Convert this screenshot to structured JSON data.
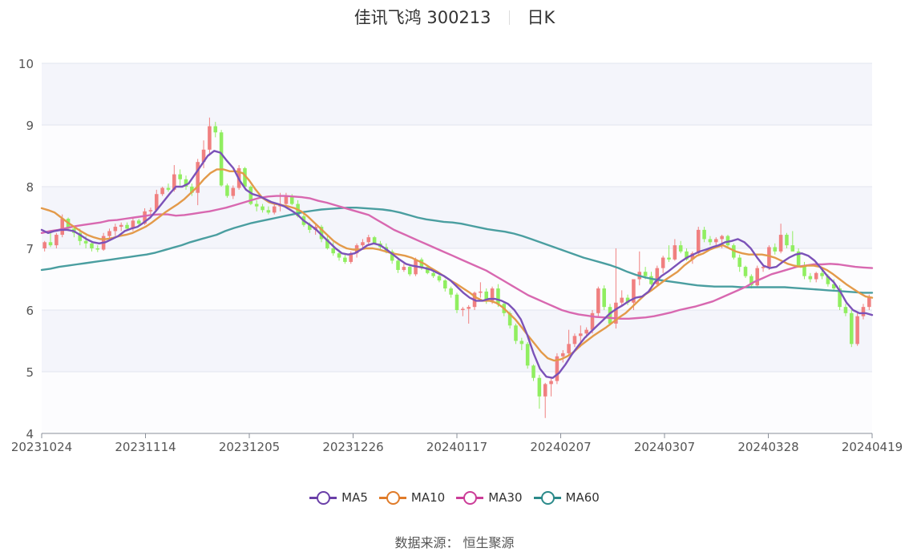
{
  "header": {
    "stock": "佳讯飞鸿 300213",
    "period": "日K"
  },
  "source": "数据来源： 恒生聚源",
  "chart_data": {
    "type": "candlestick",
    "ylim": [
      4,
      10
    ],
    "y_ticks": [
      "4",
      "5",
      "6",
      "7",
      "8",
      "9",
      "10"
    ],
    "x_ticks": [
      "20231024",
      "20231114",
      "20231205",
      "20231226",
      "20240117",
      "20240207",
      "20240307",
      "20240328",
      "20240419"
    ],
    "colors": {
      "up": "#f08080",
      "down": "#90ee60",
      "ma5": "#7b52b8",
      "ma10": "#e39a4a",
      "ma30": "#d868b0",
      "ma60": "#4a9ea0"
    },
    "legend": [
      {
        "name": "MA5",
        "color": "#6a3fa8"
      },
      {
        "name": "MA10",
        "color": "#e07b29"
      },
      {
        "name": "MA30",
        "color": "#cc3d98"
      },
      {
        "name": "MA60",
        "color": "#2b8a8a"
      }
    ],
    "candles_ohlc": [
      [
        7.0,
        7.12,
        6.95,
        7.1
      ],
      [
        7.1,
        7.28,
        7.02,
        7.05
      ],
      [
        7.05,
        7.25,
        7.0,
        7.22
      ],
      [
        7.22,
        7.55,
        7.18,
        7.48
      ],
      [
        7.48,
        7.5,
        7.28,
        7.32
      ],
      [
        7.32,
        7.35,
        7.18,
        7.25
      ],
      [
        7.25,
        7.32,
        7.05,
        7.12
      ],
      [
        7.12,
        7.2,
        7.0,
        7.08
      ],
      [
        7.08,
        7.12,
        6.95,
        7.0
      ],
      [
        7.0,
        7.05,
        6.94,
        6.98
      ],
      [
        6.98,
        7.25,
        6.96,
        7.2
      ],
      [
        7.2,
        7.32,
        7.15,
        7.28
      ],
      [
        7.28,
        7.4,
        7.2,
        7.35
      ],
      [
        7.35,
        7.42,
        7.28,
        7.38
      ],
      [
        7.38,
        7.42,
        7.3,
        7.32
      ],
      [
        7.32,
        7.5,
        7.28,
        7.45
      ],
      [
        7.45,
        7.48,
        7.35,
        7.4
      ],
      [
        7.4,
        7.65,
        7.38,
        7.6
      ],
      [
        7.6,
        7.66,
        7.55,
        7.62
      ],
      [
        7.62,
        7.95,
        7.6,
        7.88
      ],
      [
        7.88,
        8.0,
        7.85,
        7.98
      ],
      [
        7.98,
        8.05,
        7.92,
        7.95
      ],
      [
        7.95,
        8.35,
        7.92,
        8.2
      ],
      [
        8.2,
        8.28,
        8.02,
        8.12
      ],
      [
        8.12,
        8.18,
        7.95,
        8.0
      ],
      [
        8.0,
        8.05,
        7.85,
        7.9
      ],
      [
        7.9,
        8.45,
        7.7,
        8.4
      ],
      [
        8.4,
        8.75,
        8.3,
        8.6
      ],
      [
        8.6,
        9.12,
        8.5,
        8.98
      ],
      [
        8.98,
        9.05,
        8.8,
        8.88
      ],
      [
        8.88,
        8.92,
        8.0,
        8.02
      ],
      [
        8.02,
        8.05,
        7.82,
        7.85
      ],
      [
        7.85,
        8.02,
        7.8,
        7.98
      ],
      [
        7.98,
        8.35,
        7.95,
        8.3
      ],
      [
        8.3,
        8.32,
        7.98,
        8.0
      ],
      [
        8.0,
        8.02,
        7.7,
        7.72
      ],
      [
        7.72,
        7.78,
        7.6,
        7.68
      ],
      [
        7.68,
        7.72,
        7.58,
        7.62
      ],
      [
        7.62,
        7.68,
        7.55,
        7.58
      ],
      [
        7.58,
        7.72,
        7.55,
        7.68
      ],
      [
        7.68,
        7.9,
        7.6,
        7.72
      ],
      [
        7.72,
        7.9,
        7.68,
        7.85
      ],
      [
        7.85,
        7.88,
        7.7,
        7.72
      ],
      [
        7.72,
        7.78,
        7.5,
        7.52
      ],
      [
        7.52,
        7.58,
        7.35,
        7.38
      ],
      [
        7.38,
        7.42,
        7.25,
        7.3
      ],
      [
        7.3,
        7.38,
        7.22,
        7.35
      ],
      [
        7.35,
        7.38,
        7.1,
        7.15
      ],
      [
        7.15,
        7.2,
        6.98,
        7.0
      ],
      [
        7.0,
        7.1,
        6.88,
        6.92
      ],
      [
        6.92,
        6.98,
        6.8,
        6.85
      ],
      [
        6.85,
        6.9,
        6.75,
        6.78
      ],
      [
        6.78,
        6.95,
        6.75,
        6.92
      ],
      [
        6.92,
        7.08,
        6.85,
        7.05
      ],
      [
        7.05,
        7.15,
        7.0,
        7.1
      ],
      [
        7.1,
        7.22,
        7.05,
        7.18
      ],
      [
        7.18,
        7.2,
        7.06,
        7.08
      ],
      [
        7.08,
        7.12,
        6.98,
        7.02
      ],
      [
        7.02,
        7.08,
        6.92,
        6.95
      ],
      [
        6.95,
        6.98,
        6.75,
        6.8
      ],
      [
        6.8,
        6.84,
        6.6,
        6.65
      ],
      [
        6.65,
        6.75,
        6.62,
        6.7
      ],
      [
        6.7,
        6.72,
        6.55,
        6.58
      ],
      [
        6.58,
        6.85,
        6.55,
        6.82
      ],
      [
        6.82,
        6.85,
        6.65,
        6.7
      ],
      [
        6.7,
        6.72,
        6.58,
        6.6
      ],
      [
        6.6,
        6.65,
        6.52,
        6.55
      ],
      [
        6.55,
        6.58,
        6.45,
        6.48
      ],
      [
        6.48,
        6.5,
        6.3,
        6.35
      ],
      [
        6.35,
        6.38,
        6.2,
        6.25
      ],
      [
        6.25,
        6.28,
        5.95,
        6.0
      ],
      [
        6.0,
        6.05,
        5.9,
        6.02
      ],
      [
        6.02,
        6.08,
        5.78,
        6.05
      ],
      [
        6.05,
        6.3,
        6.0,
        6.28
      ],
      [
        6.28,
        6.45,
        6.2,
        6.3
      ],
      [
        6.3,
        6.35,
        6.1,
        6.15
      ],
      [
        6.15,
        6.38,
        6.1,
        6.35
      ],
      [
        6.35,
        6.42,
        6.05,
        6.1
      ],
      [
        6.1,
        6.12,
        5.9,
        5.95
      ],
      [
        5.95,
        5.98,
        5.7,
        5.75
      ],
      [
        5.75,
        5.78,
        5.45,
        5.5
      ],
      [
        5.5,
        5.55,
        5.35,
        5.45
      ],
      [
        5.45,
        5.48,
        5.05,
        5.1
      ],
      [
        5.1,
        5.12,
        4.85,
        4.9
      ],
      [
        4.9,
        4.95,
        4.4,
        4.6
      ],
      [
        4.6,
        4.82,
        4.25,
        4.8
      ],
      [
        4.8,
        4.9,
        4.6,
        4.85
      ],
      [
        4.85,
        5.3,
        4.8,
        5.25
      ],
      [
        5.25,
        5.35,
        5.15,
        5.3
      ],
      [
        5.3,
        5.68,
        5.25,
        5.45
      ],
      [
        5.45,
        5.62,
        5.4,
        5.58
      ],
      [
        5.58,
        5.75,
        5.4,
        5.62
      ],
      [
        5.62,
        5.72,
        5.55,
        5.68
      ],
      [
        5.68,
        6.0,
        5.62,
        5.95
      ],
      [
        5.95,
        6.38,
        5.9,
        6.35
      ],
      [
        6.35,
        6.4,
        6.0,
        6.05
      ],
      [
        6.05,
        6.1,
        5.75,
        5.78
      ],
      [
        5.78,
        7.0,
        5.7,
        6.12
      ],
      [
        6.12,
        6.32,
        6.05,
        6.2
      ],
      [
        6.2,
        6.25,
        6.08,
        6.12
      ],
      [
        6.12,
        6.28,
        6.0,
        6.5
      ],
      [
        6.5,
        6.95,
        6.4,
        6.62
      ],
      [
        6.62,
        6.7,
        6.5,
        6.55
      ],
      [
        6.55,
        6.62,
        6.4,
        6.42
      ],
      [
        6.42,
        6.72,
        6.4,
        6.68
      ],
      [
        6.68,
        6.88,
        6.6,
        6.85
      ],
      [
        6.85,
        7.05,
        6.78,
        6.82
      ],
      [
        6.82,
        7.15,
        6.8,
        7.05
      ],
      [
        7.05,
        7.12,
        6.92,
        6.95
      ],
      [
        6.95,
        7.0,
        6.8,
        6.82
      ],
      [
        6.82,
        6.95,
        6.75,
        6.92
      ],
      [
        6.92,
        7.35,
        6.9,
        7.3
      ],
      [
        7.3,
        7.35,
        7.1,
        7.15
      ],
      [
        7.15,
        7.2,
        7.05,
        7.1
      ],
      [
        7.1,
        7.18,
        7.05,
        7.15
      ],
      [
        7.15,
        7.22,
        7.0,
        7.2
      ],
      [
        7.2,
        7.22,
        7.0,
        7.05
      ],
      [
        7.05,
        7.08,
        6.82,
        6.85
      ],
      [
        6.85,
        6.9,
        6.62,
        6.7
      ],
      [
        6.7,
        6.72,
        6.52,
        6.55
      ],
      [
        6.55,
        6.58,
        6.35,
        6.4
      ],
      [
        6.4,
        6.72,
        6.38,
        6.68
      ],
      [
        6.68,
        6.72,
        6.62,
        6.7
      ],
      [
        6.7,
        7.05,
        6.65,
        7.02
      ],
      [
        7.02,
        7.08,
        6.9,
        6.95
      ],
      [
        6.95,
        7.4,
        6.92,
        7.22
      ],
      [
        7.22,
        7.25,
        7.0,
        7.05
      ],
      [
        7.05,
        7.28,
        6.95,
        6.95
      ],
      [
        6.95,
        7.0,
        6.7,
        6.72
      ],
      [
        6.72,
        6.78,
        6.5,
        6.55
      ],
      [
        6.55,
        6.6,
        6.45,
        6.5
      ],
      [
        6.5,
        6.62,
        6.45,
        6.6
      ],
      [
        6.6,
        6.65,
        6.5,
        6.55
      ],
      [
        6.55,
        6.58,
        6.38,
        6.42
      ],
      [
        6.42,
        6.5,
        6.3,
        6.35
      ],
      [
        6.35,
        6.4,
        6.0,
        6.05
      ],
      [
        6.05,
        6.1,
        5.9,
        5.95
      ],
      [
        5.95,
        6.0,
        5.4,
        5.45
      ],
      [
        5.45,
        5.95,
        5.42,
        5.9
      ],
      [
        5.9,
        6.1,
        5.85,
        6.05
      ],
      [
        6.05,
        6.25,
        6.0,
        6.22
      ]
    ],
    "ma5": [
      7.3,
      7.25,
      7.28,
      7.3,
      7.3,
      7.28,
      7.22,
      7.15,
      7.1,
      7.08,
      7.1,
      7.15,
      7.2,
      7.28,
      7.32,
      7.35,
      7.42,
      7.5,
      7.62,
      7.75,
      7.88,
      8.0,
      8.0,
      8.05,
      8.2,
      8.35,
      8.5,
      8.58,
      8.55,
      8.42,
      8.3,
      8.1,
      7.95,
      7.88,
      7.85,
      7.8,
      7.75,
      7.72,
      7.68,
      7.62,
      7.55,
      7.45,
      7.38,
      7.3,
      7.2,
      7.1,
      7.0,
      6.92,
      6.9,
      6.92,
      6.98,
      7.05,
      7.08,
      7.05,
      6.98,
      6.9,
      6.82,
      6.75,
      6.72,
      6.7,
      6.68,
      6.65,
      6.6,
      6.55,
      6.48,
      6.38,
      6.28,
      6.2,
      6.15,
      6.15,
      6.18,
      6.18,
      6.15,
      6.1,
      6.0,
      5.85,
      5.6,
      5.3,
      5.05,
      4.92,
      4.9,
      4.98,
      5.12,
      5.28,
      5.42,
      5.55,
      5.65,
      5.75,
      5.85,
      5.95,
      6.02,
      6.08,
      6.15,
      6.2,
      6.22,
      6.3,
      6.45,
      6.55,
      6.62,
      6.7,
      6.78,
      6.85,
      6.9,
      6.95,
      6.98,
      7.02,
      7.05,
      7.1,
      7.12,
      7.15,
      7.1,
      7.0,
      6.85,
      6.72,
      6.68,
      6.7,
      6.78,
      6.85,
      6.9,
      6.92,
      6.88,
      6.8,
      6.68,
      6.55,
      6.45,
      6.3,
      6.12,
      6.0,
      5.95,
      5.95,
      5.92
    ],
    "ma10": [
      7.65,
      7.62,
      7.58,
      7.5,
      7.42,
      7.35,
      7.28,
      7.22,
      7.18,
      7.15,
      7.15,
      7.17,
      7.2,
      7.22,
      7.25,
      7.3,
      7.35,
      7.42,
      7.5,
      7.58,
      7.65,
      7.72,
      7.8,
      7.9,
      8.0,
      8.12,
      8.22,
      8.28,
      8.28,
      8.25,
      8.25,
      8.22,
      8.1,
      7.95,
      7.82,
      7.75,
      7.72,
      7.7,
      7.68,
      7.65,
      7.6,
      7.52,
      7.42,
      7.32,
      7.22,
      7.12,
      7.05,
      7.0,
      6.98,
      6.98,
      7.0,
      7.0,
      6.98,
      6.95,
      6.92,
      6.9,
      6.88,
      6.85,
      6.8,
      6.75,
      6.68,
      6.62,
      6.55,
      6.48,
      6.42,
      6.35,
      6.28,
      6.2,
      6.15,
      6.15,
      6.12,
      6.05,
      5.95,
      5.85,
      5.72,
      5.58,
      5.45,
      5.32,
      5.22,
      5.18,
      5.2,
      5.25,
      5.32,
      5.42,
      5.5,
      5.58,
      5.65,
      5.72,
      5.8,
      5.88,
      5.95,
      6.05,
      6.15,
      6.25,
      6.32,
      6.4,
      6.48,
      6.55,
      6.62,
      6.72,
      6.8,
      6.88,
      6.92,
      6.98,
      7.02,
      7.05,
      7.0,
      6.95,
      6.92,
      6.9,
      6.9,
      6.9,
      6.88,
      6.85,
      6.8,
      6.75,
      6.72,
      6.7,
      6.72,
      6.72,
      6.7,
      6.65,
      6.58,
      6.5,
      6.42,
      6.35,
      6.28,
      6.22,
      6.2
    ],
    "ma30": [
      7.25,
      7.28,
      7.3,
      7.33,
      7.36,
      7.38,
      7.4,
      7.42,
      7.45,
      7.46,
      7.48,
      7.5,
      7.52,
      7.54,
      7.55,
      7.55,
      7.53,
      7.54,
      7.56,
      7.58,
      7.6,
      7.63,
      7.66,
      7.7,
      7.74,
      7.78,
      7.82,
      7.84,
      7.85,
      7.85,
      7.84,
      7.83,
      7.81,
      7.77,
      7.74,
      7.7,
      7.66,
      7.62,
      7.58,
      7.54,
      7.46,
      7.38,
      7.3,
      7.24,
      7.18,
      7.12,
      7.06,
      7.0,
      6.94,
      6.88,
      6.82,
      6.76,
      6.7,
      6.64,
      6.56,
      6.48,
      6.4,
      6.32,
      6.24,
      6.18,
      6.12,
      6.06,
      6.0,
      5.96,
      5.93,
      5.91,
      5.89,
      5.88,
      5.87,
      5.86,
      5.86,
      5.87,
      5.88,
      5.9,
      5.93,
      5.96,
      6.0,
      6.03,
      6.06,
      6.1,
      6.14,
      6.2,
      6.26,
      6.32,
      6.38,
      6.46,
      6.52,
      6.58,
      6.62,
      6.66,
      6.7,
      6.72,
      6.74,
      6.74,
      6.75,
      6.74,
      6.72,
      6.7,
      6.69,
      6.68
    ],
    "ma60": [
      6.65,
      6.67,
      6.7,
      6.72,
      6.74,
      6.76,
      6.78,
      6.8,
      6.82,
      6.84,
      6.86,
      6.88,
      6.9,
      6.93,
      6.97,
      7.01,
      7.05,
      7.1,
      7.14,
      7.18,
      7.22,
      7.28,
      7.33,
      7.37,
      7.41,
      7.44,
      7.47,
      7.5,
      7.53,
      7.56,
      7.59,
      7.61,
      7.63,
      7.64,
      7.65,
      7.66,
      7.66,
      7.65,
      7.64,
      7.63,
      7.61,
      7.58,
      7.54,
      7.5,
      7.47,
      7.45,
      7.43,
      7.42,
      7.4,
      7.37,
      7.34,
      7.31,
      7.29,
      7.27,
      7.24,
      7.2,
      7.15,
      7.1,
      7.05,
      7.0,
      6.95,
      6.9,
      6.85,
      6.81,
      6.77,
      6.73,
      6.68,
      6.62,
      6.57,
      6.53,
      6.5,
      6.48,
      6.46,
      6.44,
      6.42,
      6.4,
      6.39,
      6.38,
      6.38,
      6.38,
      6.37,
      6.37,
      6.37,
      6.37,
      6.37,
      6.37,
      6.36,
      6.35,
      6.34,
      6.33,
      6.32,
      6.31,
      6.3,
      6.29,
      6.28,
      6.28
    ]
  }
}
